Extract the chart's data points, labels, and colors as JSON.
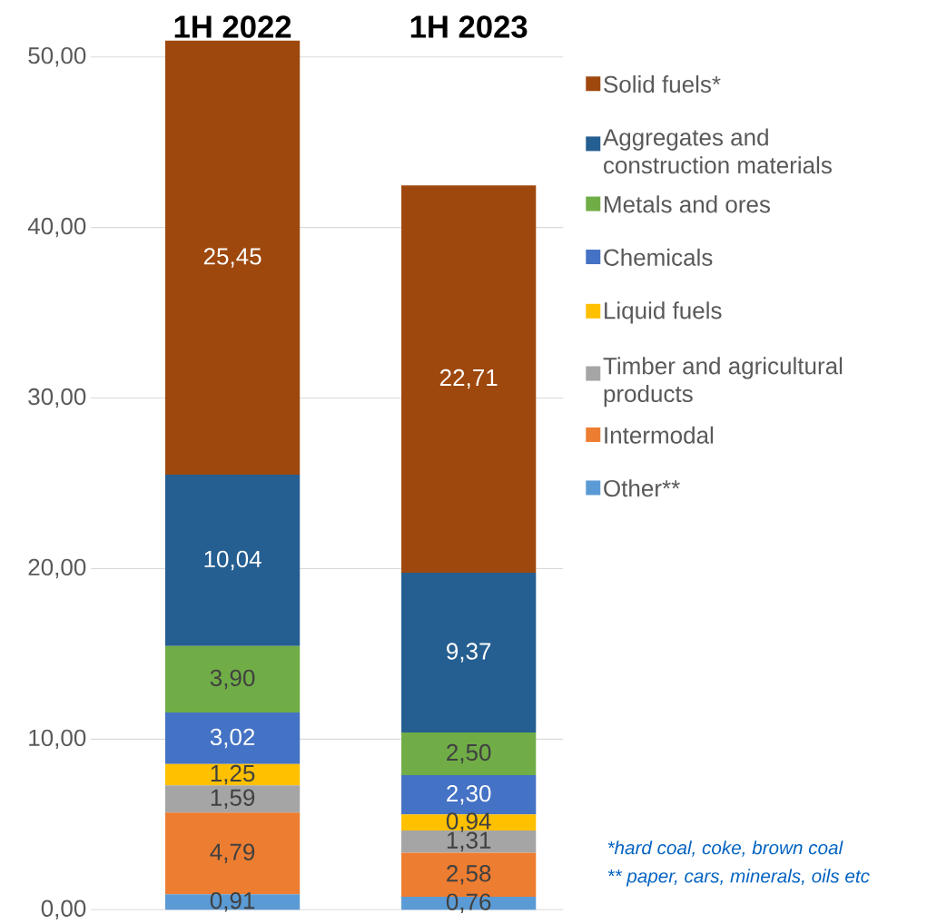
{
  "chart_data": {
    "type": "bar",
    "stacked": true,
    "categories": [
      "1H 2022",
      "1H 2023"
    ],
    "series": [
      {
        "name": "Other**",
        "color": "#5b9bd5",
        "values": [
          0.91,
          0.76
        ],
        "value_labels": [
          "0,91",
          "0,76"
        ]
      },
      {
        "name": "Intermodal",
        "color": "#ed7d31",
        "values": [
          4.79,
          2.58
        ],
        "value_labels": [
          "4,79",
          "2,58"
        ]
      },
      {
        "name": "Timber and agricultural products",
        "color": "#a5a5a5",
        "values": [
          1.59,
          1.31
        ],
        "value_labels": [
          "1,59",
          "1,31"
        ]
      },
      {
        "name": "Liquid fuels",
        "color": "#ffc000",
        "values": [
          1.25,
          0.94
        ],
        "value_labels": [
          "1,25",
          "0,94"
        ]
      },
      {
        "name": "Chemicals",
        "color": "#4472c4",
        "values": [
          3.02,
          2.3
        ],
        "value_labels": [
          "3,02",
          "2,30"
        ]
      },
      {
        "name": "Metals and ores",
        "color": "#70ad47",
        "values": [
          3.9,
          2.5
        ],
        "value_labels": [
          "3,90",
          "2,50"
        ]
      },
      {
        "name": "Aggregates and construction materials",
        "color": "#255e91",
        "values": [
          10.04,
          9.37
        ],
        "value_labels": [
          "10,04",
          "9,37"
        ]
      },
      {
        "name": "Solid fuels*",
        "color": "#9e480e",
        "values": [
          25.45,
          22.71
        ],
        "value_labels": [
          "25,45",
          "22,71"
        ]
      }
    ],
    "ylim": [
      0,
      51
    ],
    "yticks": [
      {
        "value": 0,
        "label": "0,00"
      },
      {
        "value": 10,
        "label": "10,00"
      },
      {
        "value": 20,
        "label": "20,00"
      },
      {
        "value": 30,
        "label": "30,00"
      },
      {
        "value": 40,
        "label": "40,00"
      },
      {
        "value": 50,
        "label": "50,00"
      }
    ],
    "grid": "y",
    "legend": "right",
    "annotations": [
      "*hard coal, coke, brown coal",
      "** paper, cars, minerals, oils etc"
    ]
  }
}
